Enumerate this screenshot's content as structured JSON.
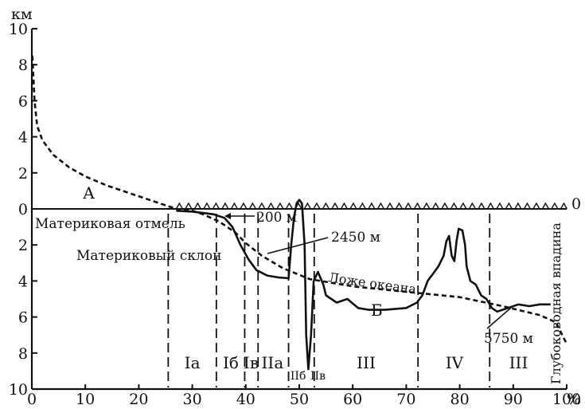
{
  "chart_data": {
    "type": "line",
    "title": "",
    "xlabel": "%",
    "ylabel": "км",
    "xlim": [
      0,
      100
    ],
    "ylim": [
      -10,
      10
    ],
    "x_ticks": [
      0,
      10,
      20,
      30,
      40,
      50,
      60,
      70,
      80,
      90,
      100
    ],
    "x_tick_labels": [
      "0",
      "10",
      "20",
      "30",
      "40",
      "50",
      "60",
      "70",
      "80",
      "90",
      "100"
    ],
    "y_ticks": [
      10,
      8,
      6,
      4,
      2,
      0,
      -2,
      -4,
      -6,
      -8,
      -10
    ],
    "y_tick_labels": [
      "10",
      "8",
      "6",
      "4",
      "2",
      "0",
      "2",
      "4",
      "6",
      "8",
      "10"
    ],
    "sea_level_label": "0",
    "series": [
      {
        "name": "А",
        "style": "dashed",
        "points": [
          [
            0.1,
            8.5
          ],
          [
            0.5,
            6
          ],
          [
            1,
            4.6
          ],
          [
            2,
            3.8
          ],
          [
            4,
            3.0
          ],
          [
            7,
            2.3
          ],
          [
            10,
            1.8
          ],
          [
            14,
            1.3
          ],
          [
            18,
            0.9
          ],
          [
            22,
            0.5
          ],
          [
            25,
            0.2
          ],
          [
            27,
            0.0
          ],
          [
            30,
            -0.1
          ],
          [
            32,
            -0.3
          ],
          [
            35,
            -0.7
          ],
          [
            38,
            -1.3
          ],
          [
            40,
            -1.9
          ],
          [
            43,
            -2.6
          ],
          [
            47,
            -3.3
          ],
          [
            52,
            -3.9
          ],
          [
            60,
            -4.3
          ],
          [
            70,
            -4.6
          ],
          [
            80,
            -4.9
          ],
          [
            88,
            -5.4
          ],
          [
            95,
            -5.9
          ],
          [
            98,
            -6.3
          ],
          [
            100,
            -7.5
          ]
        ]
      },
      {
        "name": "Б",
        "style": "solid",
        "points": [
          [
            27,
            -0.1
          ],
          [
            30,
            -0.15
          ],
          [
            34,
            -0.3
          ],
          [
            36,
            -0.5
          ],
          [
            37.5,
            -1.0
          ],
          [
            39,
            -2.0
          ],
          [
            40.5,
            -2.8
          ],
          [
            42,
            -3.4
          ],
          [
            44,
            -3.7
          ],
          [
            46,
            -3.8
          ],
          [
            48,
            -3.85
          ],
          [
            48.5,
            -2.0
          ],
          [
            49,
            -0.5
          ],
          [
            49.5,
            0.3
          ],
          [
            50,
            0.5
          ],
          [
            50.5,
            0.3
          ],
          [
            51,
            -2.0
          ],
          [
            51.3,
            -7.0
          ],
          [
            51.7,
            -8.9
          ],
          [
            52.2,
            -7.0
          ],
          [
            52.7,
            -4.0
          ],
          [
            53.5,
            -3.5
          ],
          [
            54.5,
            -4.2
          ],
          [
            55,
            -4.8
          ],
          [
            57,
            -5.2
          ],
          [
            59,
            -5.0
          ],
          [
            61,
            -5.5
          ],
          [
            63,
            -5.6
          ],
          [
            66,
            -5.6
          ],
          [
            70,
            -5.5
          ],
          [
            72,
            -5.2
          ],
          [
            73,
            -4.8
          ],
          [
            74,
            -4.0
          ],
          [
            75,
            -3.6
          ],
          [
            76,
            -3.2
          ],
          [
            77,
            -2.6
          ],
          [
            77.5,
            -1.8
          ],
          [
            78,
            -1.5
          ],
          [
            78.5,
            -2.6
          ],
          [
            79,
            -2.9
          ],
          [
            79.4,
            -1.8
          ],
          [
            79.8,
            -1.1
          ],
          [
            80.5,
            -1.2
          ],
          [
            81,
            -2.0
          ],
          [
            81.3,
            -3.2
          ],
          [
            82,
            -4.0
          ],
          [
            83,
            -4.2
          ],
          [
            84,
            -4.8
          ],
          [
            85,
            -5.0
          ],
          [
            86,
            -5.5
          ],
          [
            87,
            -5.7
          ],
          [
            89,
            -5.5
          ],
          [
            91,
            -5.3
          ],
          [
            93,
            -5.4
          ],
          [
            95,
            -5.3
          ],
          [
            97,
            -5.3
          ]
        ]
      }
    ],
    "zone_boundaries": [
      25.5,
      34.5,
      39.8,
      42.3,
      48,
      52.8,
      72.2,
      85.6
    ],
    "zones": [
      {
        "label": "Iа",
        "x": 30,
        "size": "large"
      },
      {
        "label": "Iб",
        "x": 37.2,
        "size": "large"
      },
      {
        "label": "Iв",
        "x": 41,
        "size": "large"
      },
      {
        "label": "IIа",
        "x": 45,
        "size": "large"
      },
      {
        "label": "IIб",
        "x": 49.8,
        "size": "small"
      },
      {
        "label": "IIв",
        "x": 53.5,
        "size": "small"
      },
      {
        "label": "III",
        "x": 62.5,
        "size": "large"
      },
      {
        "label": "IV",
        "x": 79,
        "size": "large"
      },
      {
        "label": "III",
        "x": 91,
        "size": "large"
      }
    ],
    "annotations": [
      {
        "id": "label-a",
        "text": "А"
      },
      {
        "id": "label-b",
        "text": "Б"
      },
      {
        "id": "shelf",
        "text": "Материковая отмель"
      },
      {
        "id": "slope",
        "text": "Материковый склон"
      },
      {
        "id": "ocean-floor",
        "text": "Ложе океана"
      },
      {
        "id": "trench",
        "text": "Глубоководная впадина"
      },
      {
        "id": "depth-200",
        "text": "200 м"
      },
      {
        "id": "depth-2450",
        "text": "2450 м"
      },
      {
        "id": "depth-5750",
        "text": "5750 м"
      }
    ],
    "grid": false
  }
}
